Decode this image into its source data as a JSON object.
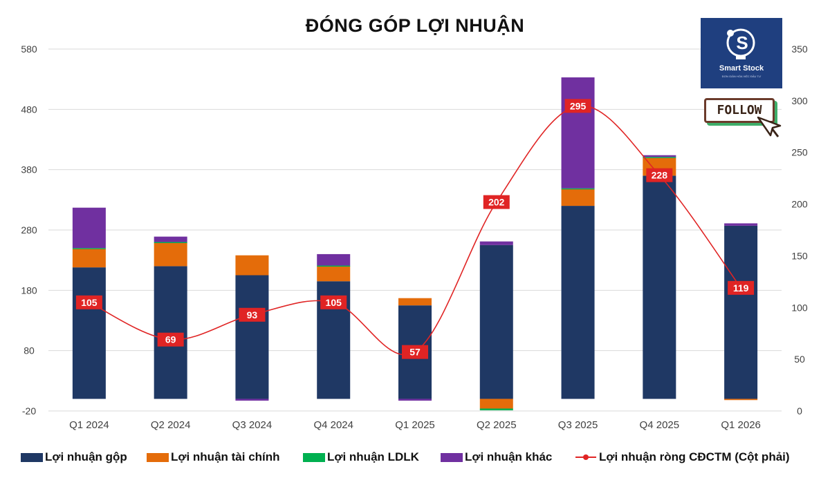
{
  "chart_data": {
    "type": "bar",
    "title": "ĐÓNG GÓP LỢI NHUẬN",
    "categories": [
      "Q1 2024",
      "Q2 2024",
      "Q3 2024",
      "Q4 2024",
      "Q1 2025",
      "Q2 2025",
      "Q3 2025",
      "Q4 2025",
      "Q1 2026"
    ],
    "stacked": true,
    "y_left": {
      "min": -20,
      "max": 580,
      "ticks": [
        "-20",
        "80",
        "180",
        "280",
        "380",
        "480",
        "580"
      ]
    },
    "y_right": {
      "min": 0,
      "max": 350,
      "ticks": [
        "0",
        "50",
        "100",
        "150",
        "200",
        "250",
        "300",
        "350"
      ]
    },
    "series": [
      {
        "name": "Lợi nhuận gộp",
        "kind": "bar",
        "axis": "left",
        "color": "#1f3864",
        "values": [
          218,
          220,
          205,
          195,
          155,
          255,
          320,
          370,
          287
        ]
      },
      {
        "name": "Lợi nhuận tài chính",
        "kind": "bar",
        "axis": "left",
        "color": "#e46c0a",
        "values": [
          31,
          39,
          33,
          25,
          12,
          -16,
          28,
          30,
          -2
        ]
      },
      {
        "name": "Lợi nhuận LDLK",
        "kind": "bar",
        "axis": "left",
        "color": "#00b050",
        "values": [
          1,
          1,
          0,
          1,
          0,
          -3,
          1,
          1,
          0
        ]
      },
      {
        "name": "Lợi nhuận khác",
        "kind": "bar",
        "axis": "left",
        "color": "#7030a0",
        "values": [
          67,
          9,
          -3,
          19,
          -3,
          6,
          184,
          3,
          4
        ]
      },
      {
        "name": "Lợi nhuận ròng CĐCTM (Cột phải)",
        "kind": "line",
        "axis": "right",
        "color": "#e02424",
        "values": [
          105,
          69,
          93,
          105,
          57,
          202,
          295,
          228,
          119
        ],
        "labels": [
          "105",
          "69",
          "93",
          "105",
          "57",
          "202",
          "295",
          "228",
          "119"
        ]
      }
    ],
    "grid": true,
    "legend": "bottom"
  },
  "logo": {
    "name": "Smart Stock",
    "tagline": "ĐƠN GIẢN HÓA VIỆC ĐẦU TƯ",
    "color": "#1f3f7f"
  },
  "follow": {
    "label": "FOLLOW"
  }
}
